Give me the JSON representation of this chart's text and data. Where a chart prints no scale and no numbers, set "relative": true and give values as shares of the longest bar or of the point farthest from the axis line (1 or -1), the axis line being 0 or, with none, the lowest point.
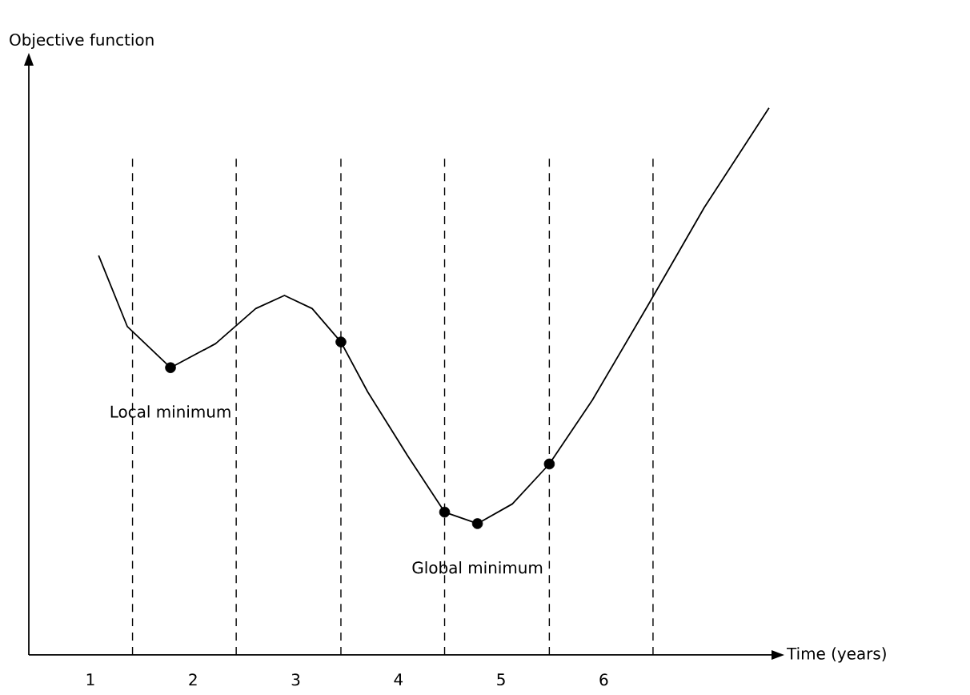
{
  "chart_data": {
    "type": "line",
    "xlabel": "Time (years)",
    "ylabel": "Objective function",
    "relative": true,
    "tick_labels": "x",
    "xlim": [
      0.4,
      7.65
    ],
    "xticks": [
      1,
      2,
      3,
      4,
      5,
      6
    ],
    "series": [
      {
        "color": "#000000",
        "marker": "none",
        "line_style": "solid",
        "x": [
          1.08,
          1.36,
          1.78,
          2.22,
          2.61,
          2.89,
          3.16,
          3.44,
          3.7,
          4.09,
          4.45,
          4.77,
          5.11,
          5.47,
          5.89,
          6.44,
          6.98,
          7.61
        ],
        "values": [
          0.73,
          0.6,
          0.525,
          0.569,
          0.633,
          0.657,
          0.633,
          0.572,
          0.481,
          0.364,
          0.261,
          0.24,
          0.276,
          0.349,
          0.466,
          0.642,
          0.818,
          1.0
        ]
      },
      {
        "type": "scatter",
        "color": "#000000",
        "marker": "circle",
        "x": [
          1.78,
          3.44,
          4.45,
          4.77,
          5.47
        ],
        "values": [
          0.525,
          0.572,
          0.261,
          0.24,
          0.349
        ]
      }
    ],
    "ref_lines": [
      {
        "axis": "x",
        "value": 1.41,
        "color": "#000000",
        "line_style": "dashed"
      },
      {
        "axis": "x",
        "value": 2.42,
        "color": "#000000",
        "line_style": "dashed"
      },
      {
        "axis": "x",
        "value": 3.44,
        "color": "#000000",
        "line_style": "dashed"
      },
      {
        "axis": "x",
        "value": 4.45,
        "color": "#000000",
        "line_style": "dashed"
      },
      {
        "axis": "x",
        "value": 5.47,
        "color": "#000000",
        "line_style": "dashed"
      },
      {
        "axis": "x",
        "value": 6.48,
        "color": "#000000",
        "line_style": "dashed"
      }
    ],
    "annotations": [
      {
        "text": "Local minimum",
        "x": 1.78,
        "y": 0.525
      },
      {
        "text": "Global minimum",
        "x": 4.77,
        "y": 0.24
      }
    ]
  }
}
